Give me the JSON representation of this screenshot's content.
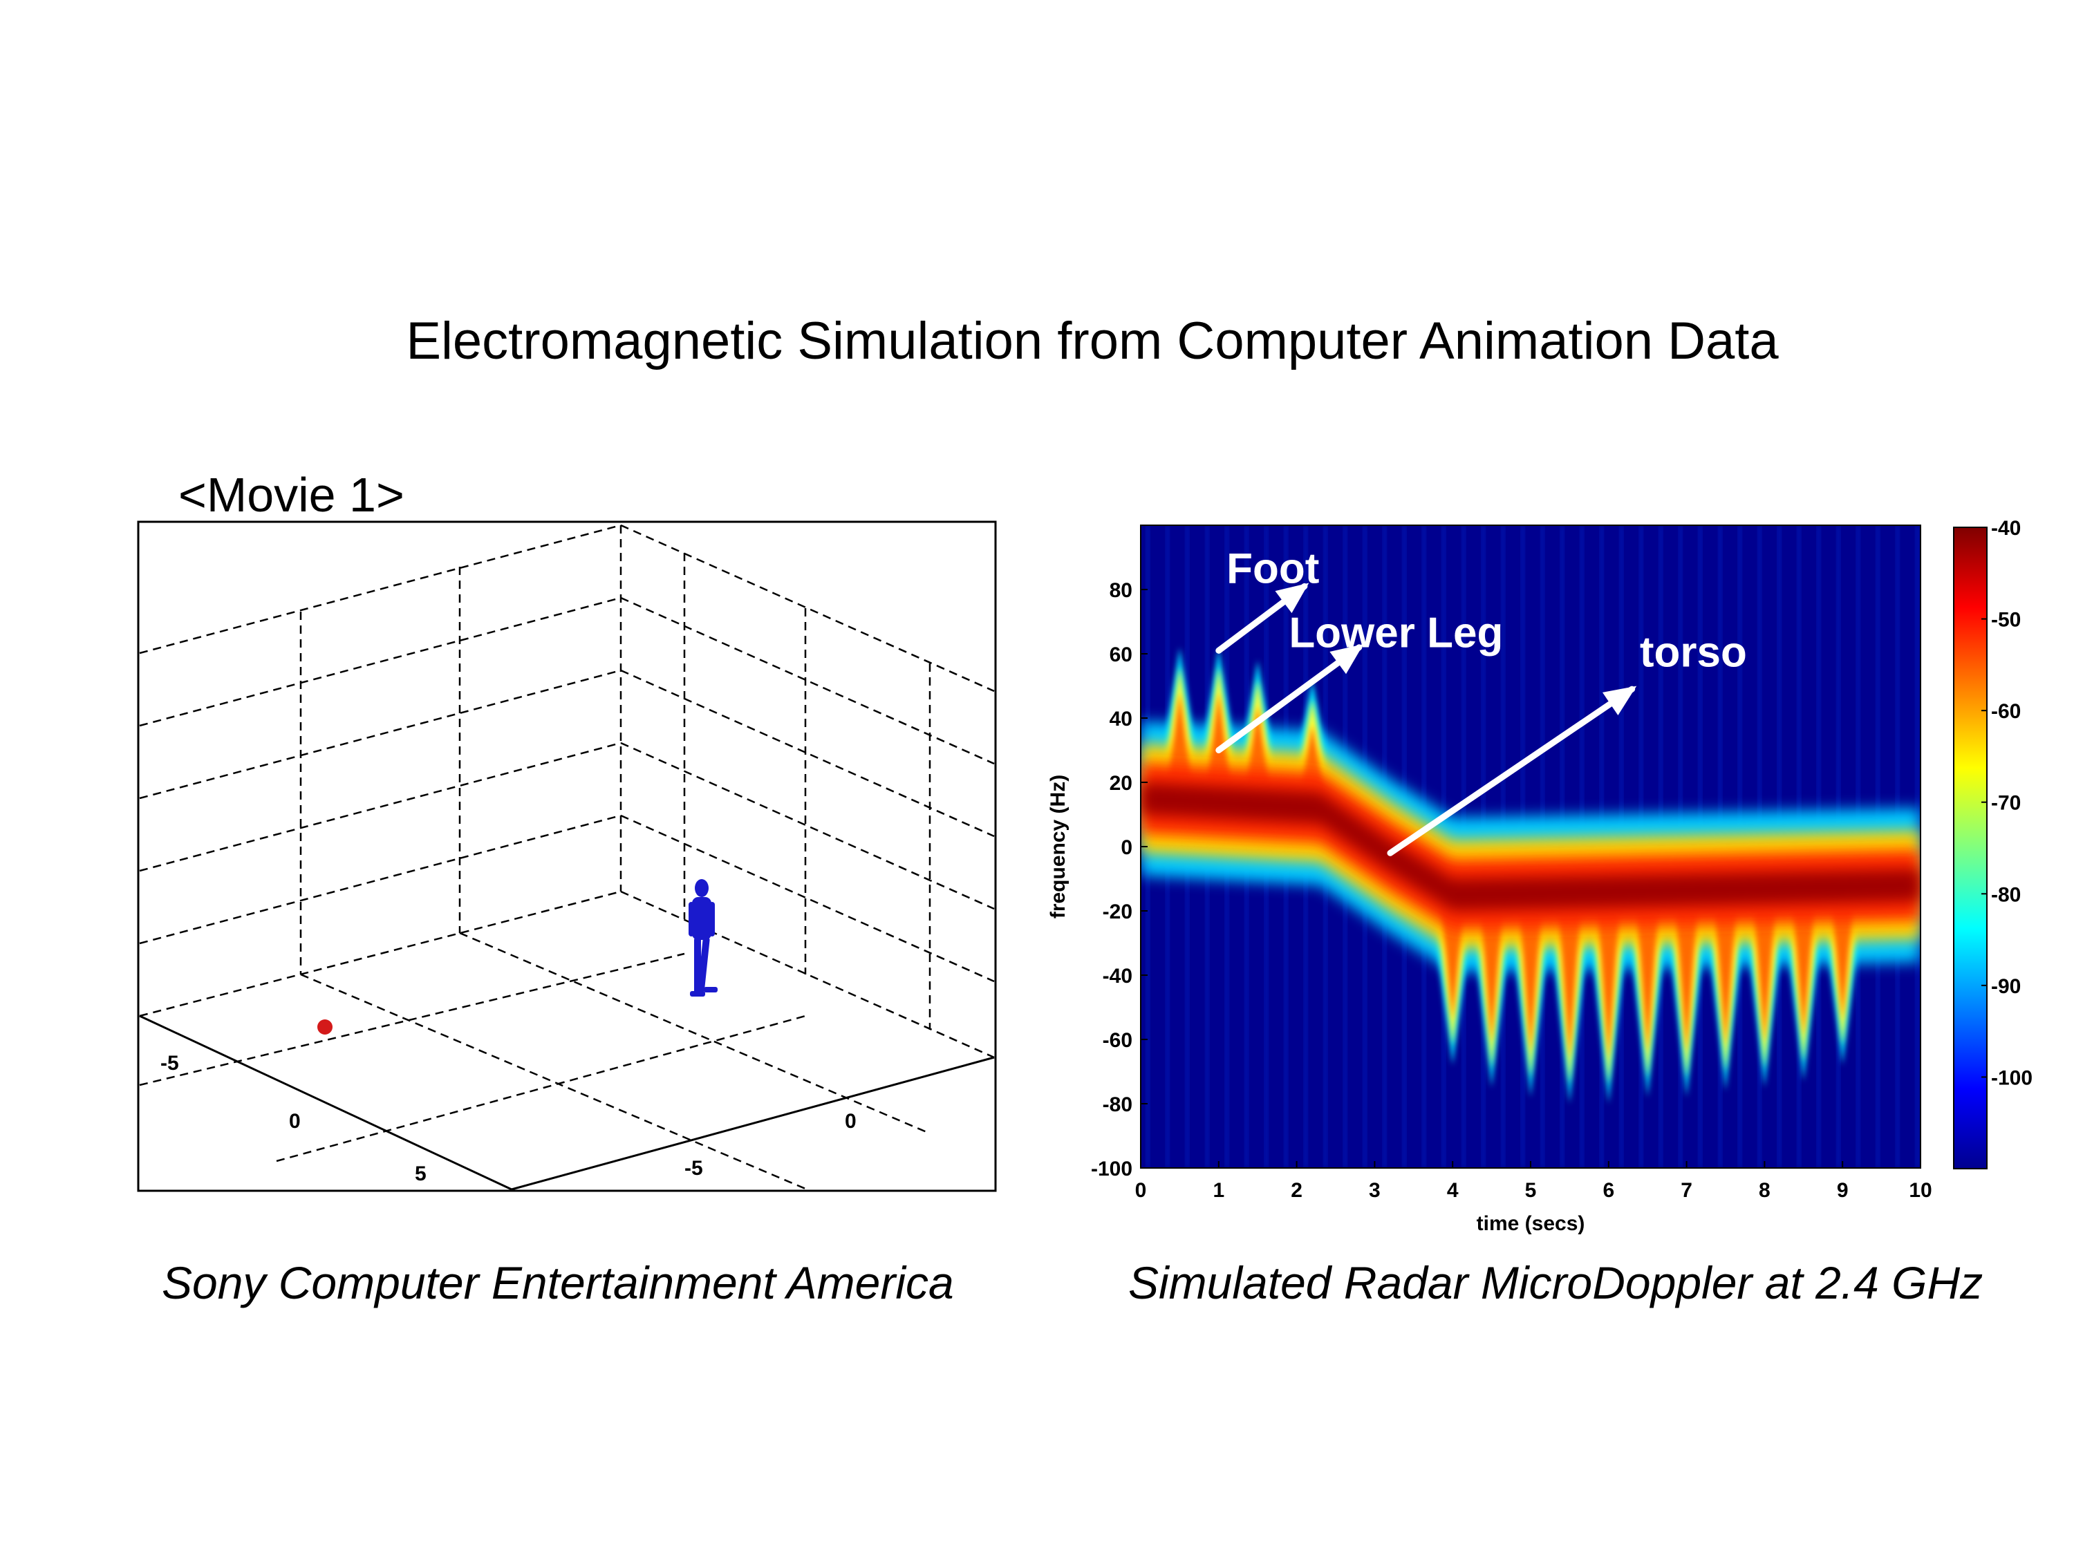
{
  "title": "Electromagnetic Simulation from Computer Animation Data",
  "movie_label": "<Movie 1>",
  "captions": {
    "left": "Sony Computer Entertainment America",
    "right": "Simulated Radar MicroDoppler at 2.4 GHz"
  },
  "scene3d": {
    "ticks": [
      "-5",
      "0",
      "5",
      "0",
      "-5"
    ],
    "figure_color": "#1a1acc",
    "marker_color": "#d41a1a"
  },
  "chart_data": {
    "type": "heatmap",
    "xlabel": "time (secs)",
    "ylabel": "frequency (Hz)",
    "xlim": [
      0,
      10
    ],
    "ylim": [
      -100,
      100
    ],
    "xticks": [
      0,
      1,
      2,
      3,
      4,
      5,
      6,
      7,
      8,
      9,
      10
    ],
    "yticks": [
      80,
      60,
      40,
      20,
      0,
      -20,
      -40,
      -60,
      -80,
      -100
    ],
    "colorbar": {
      "range": [
        -110,
        -40
      ],
      "ticks": [
        -40,
        -50,
        -60,
        -70,
        -80,
        -90,
        -100
      ]
    },
    "colormap": "jet",
    "background_color": "#00008f",
    "components": [
      {
        "name": "torso",
        "center_hz": [
          [
            0,
            15
          ],
          [
            2.3,
            12
          ],
          [
            3.2,
            -3
          ],
          [
            4,
            -15
          ],
          [
            10,
            -12
          ]
        ]
      },
      {
        "name": "foot",
        "peaks": [
          [
            0.5,
            62
          ],
          [
            1.0,
            62
          ],
          [
            1.5,
            58
          ],
          [
            2.2,
            52
          ]
        ]
      },
      {
        "name": "lower-leg",
        "troughs": [
          [
            4,
            -68
          ],
          [
            4.5,
            -75
          ],
          [
            5,
            -78
          ],
          [
            5.5,
            -80
          ],
          [
            6,
            -80
          ],
          [
            6.5,
            -78
          ],
          [
            7,
            -78
          ],
          [
            7.5,
            -76
          ],
          [
            8,
            -75
          ],
          [
            8.5,
            -73
          ],
          [
            9,
            -68
          ]
        ]
      }
    ],
    "annotations": [
      {
        "label": "Foot",
        "from": [
          1.0,
          61
        ],
        "to": [
          2.1,
          81
        ]
      },
      {
        "label": "Lower Leg",
        "from": [
          1.0,
          30
        ],
        "to": [
          2.8,
          62
        ]
      },
      {
        "label": "torso",
        "from": [
          3.2,
          -2
        ],
        "to": [
          6.3,
          49
        ]
      }
    ]
  }
}
